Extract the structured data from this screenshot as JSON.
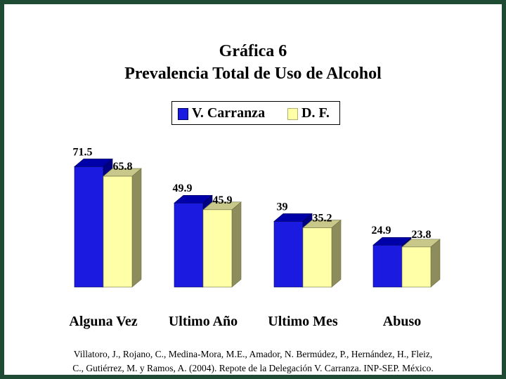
{
  "chart_data": {
    "type": "bar",
    "title": "Gráfica 6",
    "subtitle": "Prevalencia Total de Uso de Alcohol",
    "categories": [
      "Alguna Vez",
      "Ultimo Año",
      "Ultimo Mes",
      "Abuso"
    ],
    "series": [
      {
        "name": "V. Carranza",
        "values": [
          71.5,
          49.9,
          39,
          24.9
        ],
        "labels": [
          "71.5",
          "49.9",
          "39",
          "24.9"
        ],
        "color": "#1a1ae0"
      },
      {
        "name": "D. F.",
        "values": [
          65.8,
          45.9,
          35.2,
          23.8
        ],
        "labels": [
          "65.8",
          "45.9",
          "35.2",
          "23.8"
        ],
        "color": "#ffffa8"
      }
    ],
    "legend": "top-center",
    "grid": false,
    "style": "3d-bars"
  },
  "source": {
    "line1": "Villatoro, J., Rojano, C., Medina-Mora, M.E., Amador, N. Bermúdez, P., Hernández, H., Fleiz,",
    "line2": "C., Gutiérrez, M. y Ramos, A. (2004). Repote de la Delegación V. Carranza. INP-SEP. México."
  },
  "colors": {
    "frame": "#1f4a34",
    "background": "#ffffff"
  }
}
